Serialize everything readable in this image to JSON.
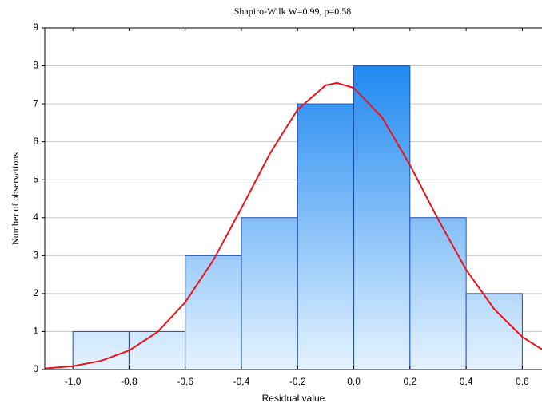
{
  "chart_data": {
    "type": "histogram",
    "title": "Shapiro-Wilk W=0.99, p=0.58",
    "x_label": "Residual value",
    "y_label": "Number of observations",
    "bins": [
      -1.0,
      -0.8,
      -0.6,
      -0.4,
      -0.2,
      0.0,
      0.2,
      0.4,
      0.6
    ],
    "counts": [
      1,
      1,
      3,
      4,
      7,
      8,
      4,
      2
    ],
    "bar_color": "#1e88f0",
    "curve": {
      "color": "#e8141a",
      "x": [
        -1.1,
        -1.0,
        -0.9,
        -0.8,
        -0.7,
        -0.6,
        -0.5,
        -0.4,
        -0.3,
        -0.2,
        -0.1,
        -0.06,
        0.0,
        0.1,
        0.2,
        0.3,
        0.4,
        0.5,
        0.6,
        0.67
      ],
      "y": [
        0.03,
        0.09,
        0.23,
        0.5,
        0.98,
        1.77,
        2.88,
        4.25,
        5.67,
        6.85,
        7.49,
        7.55,
        7.42,
        6.65,
        5.39,
        3.96,
        2.63,
        1.59,
        0.86,
        0.53
      ]
    },
    "xlim": [
      -1.1,
      0.67
    ],
    "ylim": [
      0,
      9
    ],
    "xticks": [
      {
        "value": -1.0,
        "label": "-1,0"
      },
      {
        "value": -0.8,
        "label": "-0,8"
      },
      {
        "value": -0.6,
        "label": "-0,6"
      },
      {
        "value": -0.4,
        "label": "-0,4"
      },
      {
        "value": -0.2,
        "label": "-0,2"
      },
      {
        "value": 0.0,
        "label": "0,0"
      },
      {
        "value": 0.2,
        "label": "0,2"
      },
      {
        "value": 0.4,
        "label": "0,4"
      },
      {
        "value": 0.6,
        "label": "0,6"
      }
    ],
    "yticks": [
      0,
      1,
      2,
      3,
      4,
      5,
      6,
      7,
      8,
      9
    ],
    "grid": true
  }
}
